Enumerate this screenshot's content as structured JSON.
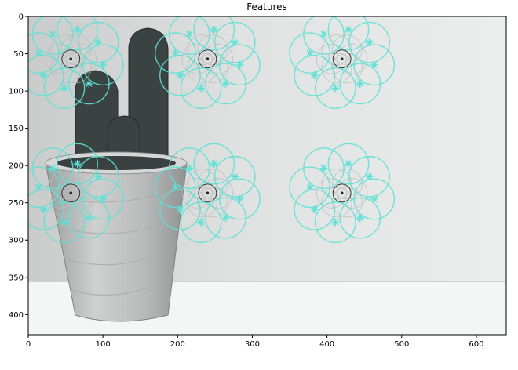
{
  "figure": {
    "title": "Features"
  },
  "image": {
    "description_label": "cactus-in-pot-photo",
    "x_range": [
      0,
      640
    ],
    "y_range": [
      0,
      427
    ]
  },
  "axes": {
    "x_ticks": [
      0,
      100,
      200,
      300,
      400,
      500,
      600
    ],
    "y_ticks": [
      0,
      50,
      100,
      150,
      200,
      250,
      300,
      350,
      400
    ],
    "feature_color": "#5ee0d6"
  },
  "features": {
    "clusters": [
      {
        "x": 57,
        "y": 57
      },
      {
        "x": 240,
        "y": 57
      },
      {
        "x": 420,
        "y": 57
      },
      {
        "x": 57,
        "y": 237
      },
      {
        "x": 240,
        "y": 237
      },
      {
        "x": 420,
        "y": 237
      }
    ]
  }
}
